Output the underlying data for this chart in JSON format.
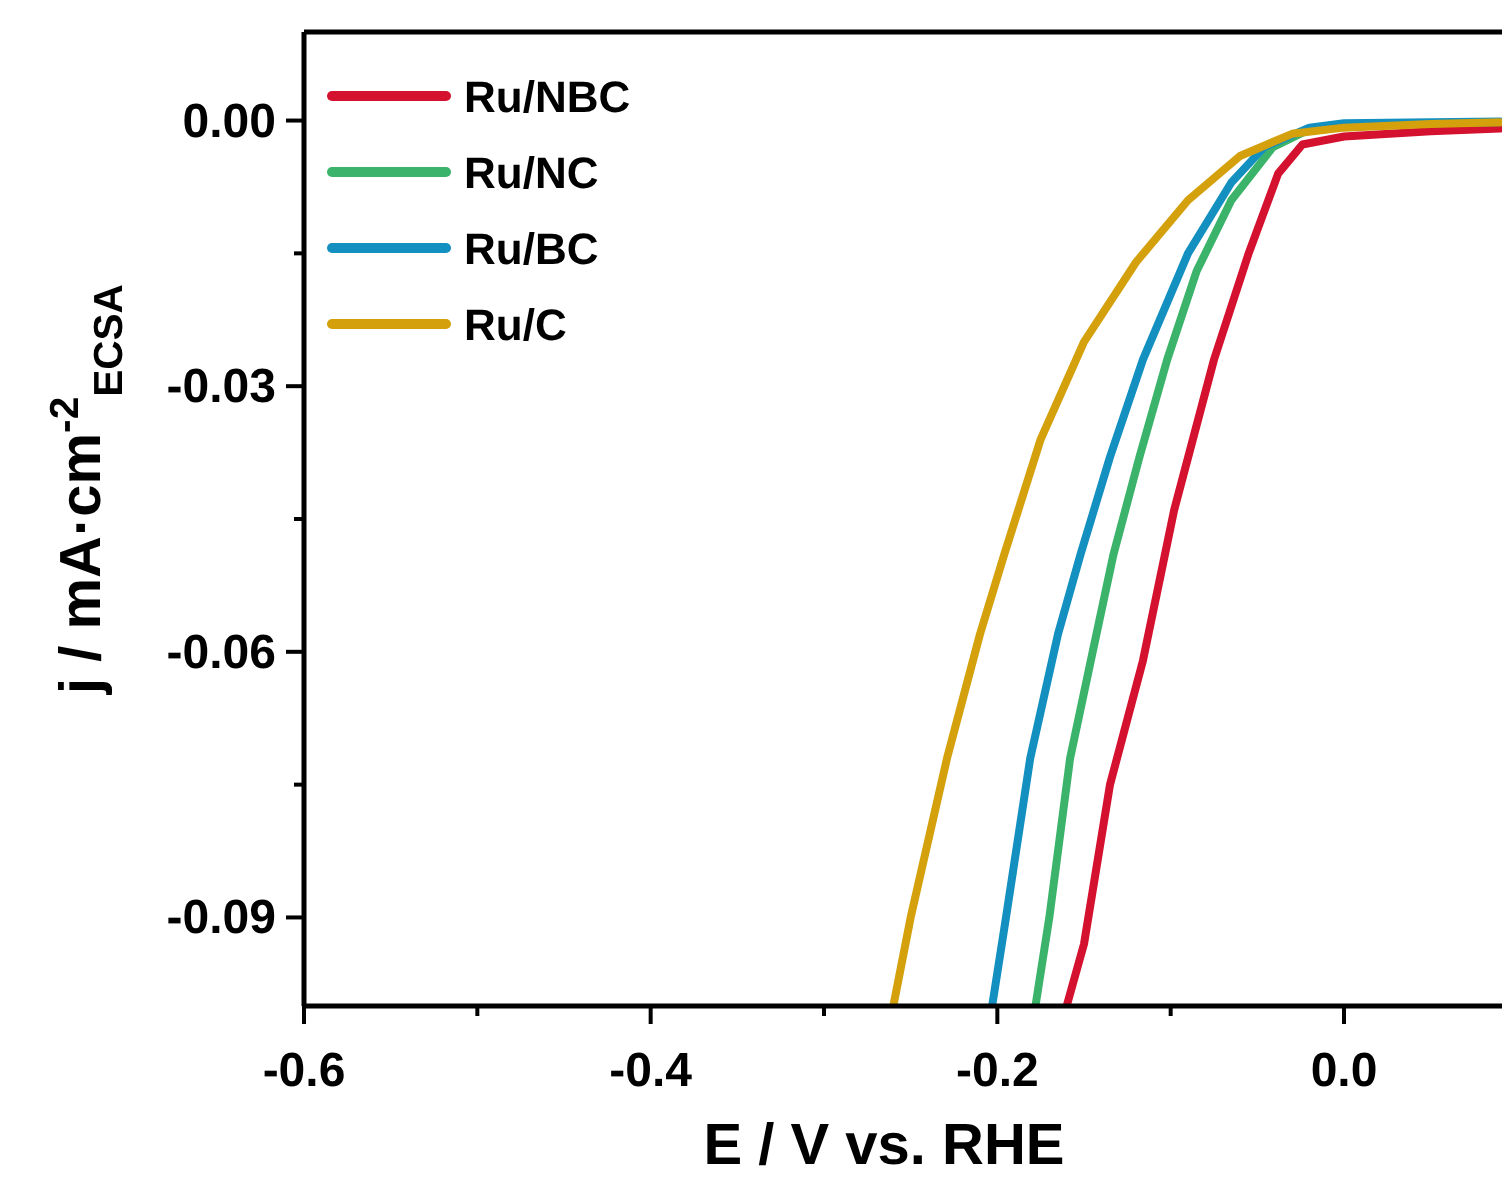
{
  "chart_data": {
    "type": "line",
    "xlabel": "E / V vs. RHE",
    "ylabel": "j / mA·cm$^{-2}$$_{ECSA}$",
    "xlim": [
      -0.6,
      0.09
    ],
    "ylim": [
      -0.1,
      0.01
    ],
    "xticks": [
      -0.6,
      {
        "value": -0.5,
        "label": null
      },
      -0.4,
      {
        "value": -0.3,
        "label": null
      },
      -0.2,
      {
        "value": -0.1,
        "label": null
      },
      {
        "value": 0,
        "label": "0.0"
      }
    ],
    "yticks": [
      {
        "value": -0.09,
        "label": "-0.09"
      },
      {
        "value": -0.075,
        "label": null
      },
      {
        "value": -0.06,
        "label": "-0.06"
      },
      {
        "value": -0.045,
        "label": null
      },
      {
        "value": -0.03,
        "label": "-0.03"
      },
      {
        "value": -0.015,
        "label": null
      },
      {
        "value": 0,
        "label": "0.00"
      }
    ],
    "legend": "top left",
    "grid": false,
    "line_style": "solid",
    "series": [
      {
        "name": "Ru/NBC",
        "color": "#d4112e",
        "x": [
          -0.16,
          -0.15,
          -0.135,
          -0.116,
          -0.098,
          -0.075,
          -0.055,
          -0.038,
          -0.024,
          0,
          0.05,
          0.09
        ],
        "values": [
          -0.1,
          -0.093,
          -0.075,
          -0.061,
          -0.044,
          -0.027,
          -0.015,
          -0.006,
          -0.0027,
          -0.0018,
          -0.0012,
          -0.0009
        ]
      },
      {
        "name": "Ru/NC",
        "color": "#3cb36a",
        "x": [
          -0.178,
          -0.17,
          -0.158,
          -0.145,
          -0.133,
          -0.118,
          -0.102,
          -0.085,
          -0.065,
          -0.041,
          -0.02,
          0,
          0.05,
          0.09
        ],
        "values": [
          -0.1,
          -0.09,
          -0.072,
          -0.06,
          -0.049,
          -0.038,
          -0.027,
          -0.017,
          -0.009,
          -0.003,
          -0.001,
          -0.0004,
          -0.0003,
          -0.0002
        ]
      },
      {
        "name": "Ru/BC",
        "color": "#1390c0",
        "x": [
          -0.203,
          -0.195,
          -0.181,
          -0.165,
          -0.152,
          -0.135,
          -0.116,
          -0.09,
          -0.065,
          -0.046,
          -0.02,
          0,
          0.05,
          0.09
        ],
        "values": [
          -0.1,
          -0.09,
          -0.072,
          -0.058,
          -0.049,
          -0.038,
          -0.027,
          -0.015,
          -0.007,
          -0.003,
          -0.0008,
          -0.0003,
          -0.0002,
          -0.0001
        ]
      },
      {
        "name": "Ru/C",
        "color": "#d4a00c",
        "x": [
          -0.26,
          -0.25,
          -0.229,
          -0.21,
          -0.196,
          -0.175,
          -0.15,
          -0.12,
          -0.09,
          -0.06,
          -0.03,
          0,
          0.05,
          0.09
        ],
        "values": [
          -0.1,
          -0.09,
          -0.072,
          -0.058,
          -0.049,
          -0.036,
          -0.025,
          -0.016,
          -0.009,
          -0.004,
          -0.0015,
          -0.0008,
          -0.0004,
          -0.0002
        ]
      }
    ]
  }
}
